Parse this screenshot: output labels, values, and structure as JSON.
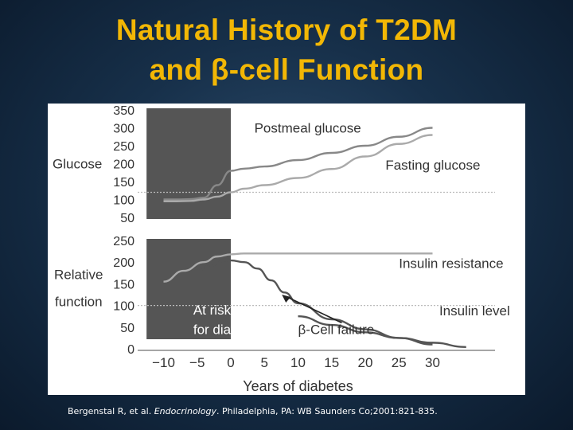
{
  "title": {
    "line1": "Natural History of T2DM",
    "line2": "and β-cell Function"
  },
  "citation": {
    "authors": "Bergenstal R, et al. ",
    "journal": "Endocrinology",
    "rest": ". Philadelphia, PA: WB Saunders Co;2001:821-835."
  },
  "colors": {
    "title": "#f2b705",
    "background": "#17304a",
    "shade": "#555555",
    "curve_dark": "#555555",
    "curve_light": "#aaaaaa",
    "text_grey": "#333333"
  },
  "chart_data": [
    {
      "type": "line",
      "panel": "glucose",
      "ylabel": "Glucose",
      "ylim": [
        50,
        350
      ],
      "yticks": [
        50,
        100,
        150,
        200,
        250,
        300,
        350
      ],
      "xlim": [
        -14,
        38
      ],
      "shaded_region": [
        -13,
        0
      ],
      "reference_line": 120,
      "series": [
        {
          "name": "Postmeal glucose",
          "x": [
            -10,
            -8,
            -6,
            -4,
            -2,
            0,
            2,
            5,
            10,
            15,
            20,
            25,
            30
          ],
          "values": [
            100,
            100,
            101,
            105,
            140,
            180,
            186,
            192,
            210,
            230,
            250,
            275,
            300
          ]
        },
        {
          "name": "Fasting glucose",
          "x": [
            -10,
            -8,
            -6,
            -4,
            -2,
            0,
            2,
            5,
            10,
            15,
            20,
            25,
            30
          ],
          "values": [
            95,
            95,
            96,
            100,
            108,
            120,
            130,
            140,
            160,
            185,
            220,
            255,
            280
          ]
        }
      ]
    },
    {
      "type": "line",
      "panel": "relative_function",
      "ylabel": "Relative function",
      "ylim": [
        0,
        250
      ],
      "yticks": [
        0,
        50,
        100,
        150,
        200,
        250
      ],
      "xlim": [
        -14,
        38
      ],
      "shaded_region": [
        -13,
        0
      ],
      "reference_line": 100,
      "xlabel": "Years of diabetes",
      "xticks": [
        -10,
        -5,
        0,
        5,
        10,
        15,
        20,
        25,
        30
      ],
      "series": [
        {
          "name": "Insulin resistance",
          "x": [
            -10,
            -7,
            -4,
            -2,
            0,
            2,
            5,
            10,
            15,
            20,
            25,
            30
          ],
          "values": [
            155,
            180,
            200,
            213,
            218,
            220,
            220,
            220,
            220,
            220,
            220,
            220
          ]
        },
        {
          "name": "Insulin level",
          "x": [
            -5,
            -3,
            -1,
            0,
            2,
            4,
            6,
            8,
            10,
            15,
            20,
            25,
            30
          ],
          "values": [
            180,
            192,
            203,
            204,
            200,
            185,
            158,
            130,
            105,
            68,
            45,
            25,
            10
          ]
        },
        {
          "name": "β-Cell failure",
          "x": [
            10,
            15,
            20,
            25,
            30,
            35
          ],
          "values": [
            75,
            55,
            38,
            25,
            14,
            4
          ]
        }
      ],
      "annotations": [
        {
          "text": "At risk",
          "x": -7,
          "y": 90
        },
        {
          "text": "for diabetes",
          "x": -7,
          "y": 45
        },
        {
          "text": "β-Cell failure",
          "x": 10,
          "y": 45
        },
        {
          "text": "Insulin resistance",
          "x": 25,
          "y": 198
        },
        {
          "text": "Insulin level",
          "x": 31,
          "y": 88
        }
      ]
    }
  ]
}
